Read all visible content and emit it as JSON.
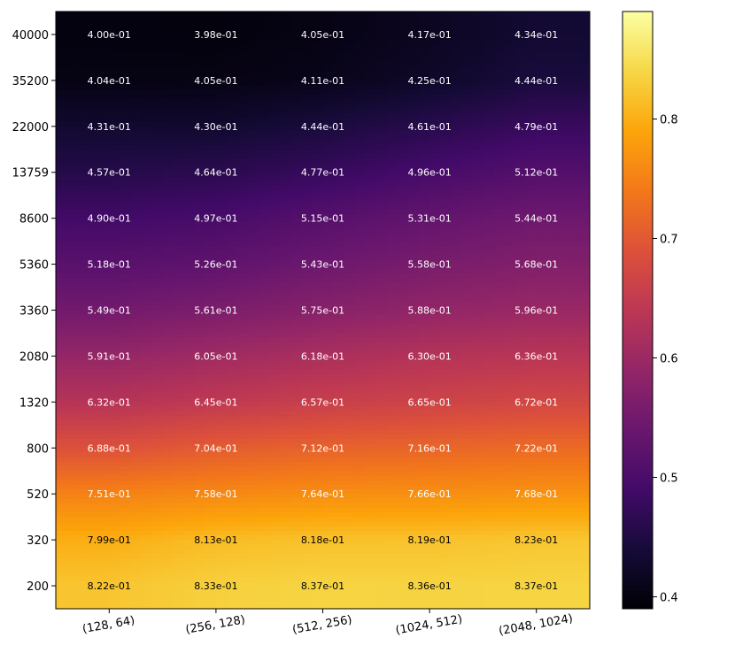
{
  "chart_data": {
    "type": "heatmap",
    "title": "",
    "xlabel": "",
    "ylabel": "",
    "x_categories": [
      "(128, 64)",
      "(256, 128)",
      "(512, 256)",
      "(1024, 512)",
      "(2048, 1024)"
    ],
    "y_categories": [
      "40000",
      "35200",
      "22000",
      "13759",
      "8600",
      "5360",
      "3360",
      "2080",
      "1320",
      "800",
      "520",
      "320",
      "200"
    ],
    "values": [
      [
        0.4,
        0.398,
        0.405,
        0.417,
        0.434
      ],
      [
        0.404,
        0.405,
        0.411,
        0.425,
        0.444
      ],
      [
        0.431,
        0.43,
        0.444,
        0.461,
        0.479
      ],
      [
        0.457,
        0.464,
        0.477,
        0.496,
        0.512
      ],
      [
        0.49,
        0.497,
        0.515,
        0.531,
        0.544
      ],
      [
        0.518,
        0.526,
        0.543,
        0.558,
        0.568
      ],
      [
        0.549,
        0.561,
        0.575,
        0.588,
        0.596
      ],
      [
        0.591,
        0.605,
        0.618,
        0.63,
        0.636
      ],
      [
        0.632,
        0.645,
        0.657,
        0.665,
        0.672
      ],
      [
        0.688,
        0.704,
        0.712,
        0.716,
        0.722
      ],
      [
        0.751,
        0.758,
        0.764,
        0.766,
        0.768
      ],
      [
        0.799,
        0.813,
        0.818,
        0.819,
        0.823
      ],
      [
        0.822,
        0.833,
        0.837,
        0.836,
        0.837
      ]
    ],
    "cell_labels": [
      [
        "4.00e-01",
        "3.98e-01",
        "4.05e-01",
        "4.17e-01",
        "4.34e-01"
      ],
      [
        "4.04e-01",
        "4.05e-01",
        "4.11e-01",
        "4.25e-01",
        "4.44e-01"
      ],
      [
        "4.31e-01",
        "4.30e-01",
        "4.44e-01",
        "4.61e-01",
        "4.79e-01"
      ],
      [
        "4.57e-01",
        "4.64e-01",
        "4.77e-01",
        "4.96e-01",
        "5.12e-01"
      ],
      [
        "4.90e-01",
        "4.97e-01",
        "5.15e-01",
        "5.31e-01",
        "5.44e-01"
      ],
      [
        "5.18e-01",
        "5.26e-01",
        "5.43e-01",
        "5.58e-01",
        "5.68e-01"
      ],
      [
        "5.49e-01",
        "5.61e-01",
        "5.75e-01",
        "5.88e-01",
        "5.96e-01"
      ],
      [
        "5.91e-01",
        "6.05e-01",
        "6.18e-01",
        "6.30e-01",
        "6.36e-01"
      ],
      [
        "6.32e-01",
        "6.45e-01",
        "6.57e-01",
        "6.65e-01",
        "6.72e-01"
      ],
      [
        "6.88e-01",
        "7.04e-01",
        "7.12e-01",
        "7.16e-01",
        "7.22e-01"
      ],
      [
        "7.51e-01",
        "7.58e-01",
        "7.64e-01",
        "7.66e-01",
        "7.68e-01"
      ],
      [
        "7.99e-01",
        "8.13e-01",
        "8.18e-01",
        "8.19e-01",
        "8.23e-01"
      ],
      [
        "8.22e-01",
        "8.33e-01",
        "8.37e-01",
        "8.36e-01",
        "8.37e-01"
      ]
    ],
    "colormap": "inferno",
    "interpolation": "smooth",
    "colorbar": {
      "range": [
        0.39,
        0.89
      ],
      "ticks": [
        0.4,
        0.5,
        0.6,
        0.7,
        0.8
      ],
      "tick_labels": [
        "0.4",
        "0.5",
        "0.6",
        "0.7",
        "0.8"
      ],
      "placement": "right"
    },
    "cell_text_colors": {
      "dark_background": "#ffffff",
      "light_background": "#000000"
    }
  }
}
